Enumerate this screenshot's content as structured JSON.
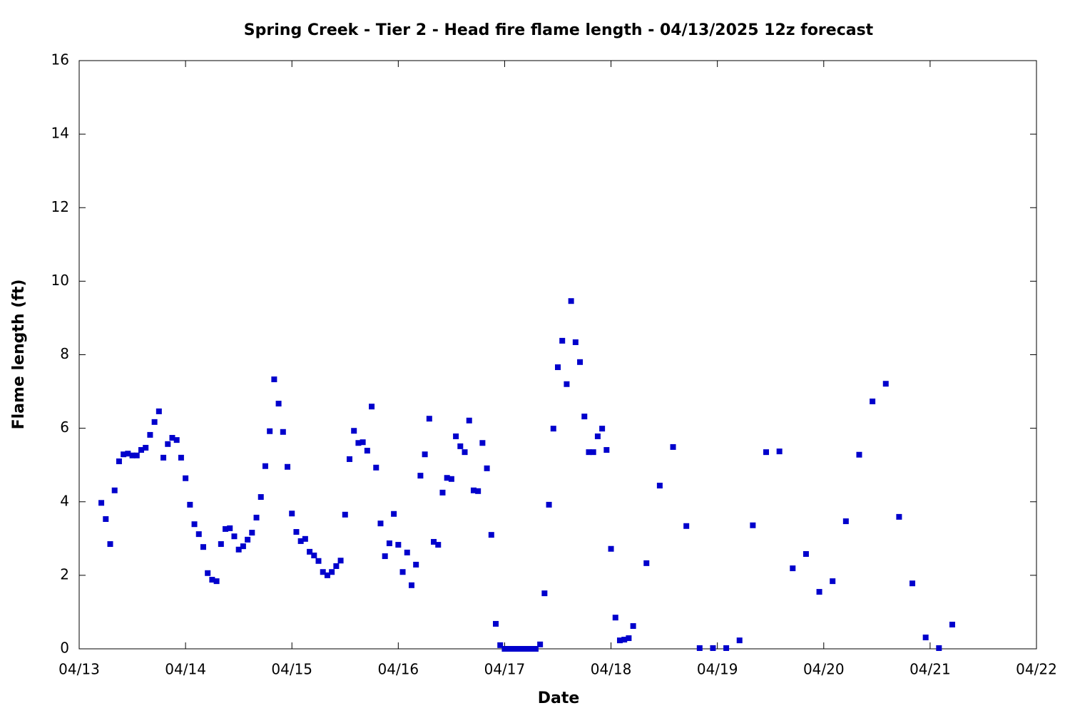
{
  "chart_data": {
    "type": "scatter",
    "title": "Spring Creek - Tier 2 - Head fire flame length - 04/13/2025 12z forecast",
    "x_label": "Date",
    "y_label": "Flame length (ft)",
    "x": [
      5,
      6,
      7,
      8,
      9,
      10,
      11,
      12,
      13,
      14,
      15,
      16,
      17,
      18,
      19,
      20,
      21,
      22,
      23,
      24,
      25,
      26,
      27,
      28,
      29,
      30,
      31,
      32,
      33,
      34,
      35,
      36,
      37,
      38,
      39,
      40,
      41,
      42,
      43,
      44,
      45,
      46,
      47,
      48,
      49,
      50,
      51,
      52,
      53,
      54,
      55,
      56,
      57,
      58,
      59,
      60,
      61,
      62,
      63,
      64,
      65,
      66,
      67,
      68,
      69,
      70,
      71,
      72,
      73,
      74,
      75,
      76,
      77,
      78,
      79,
      80,
      81,
      82,
      83,
      84,
      85,
      86,
      87,
      88,
      89,
      90,
      91,
      92,
      93,
      94,
      95,
      96,
      97,
      98,
      99,
      100,
      101,
      102,
      103,
      104,
      105,
      106,
      107,
      108,
      109,
      110,
      111,
      112,
      113,
      114,
      115,
      116,
      117,
      118,
      119,
      120,
      121,
      122,
      123,
      124,
      125,
      128,
      131,
      134,
      137,
      140,
      143,
      146,
      149,
      152,
      155,
      158,
      161,
      164,
      167,
      170,
      173,
      176,
      179,
      182,
      185,
      188,
      191,
      194,
      197
    ],
    "series": [
      {
        "name": "Flame length",
        "color": "#0000cc",
        "values": [
          3.97,
          3.53,
          2.85,
          4.31,
          5.1,
          5.29,
          5.31,
          5.26,
          5.26,
          5.41,
          5.47,
          5.82,
          6.17,
          6.46,
          5.2,
          5.57,
          5.74,
          5.68,
          5.2,
          4.64,
          3.92,
          3.39,
          3.12,
          2.77,
          2.06,
          1.88,
          1.84,
          2.85,
          3.26,
          3.28,
          3.06,
          2.7,
          2.79,
          2.97,
          3.16,
          3.57,
          4.13,
          4.97,
          5.92,
          7.33,
          6.67,
          5.9,
          4.95,
          3.68,
          3.18,
          2.93,
          2.99,
          2.64,
          2.54,
          2.39,
          2.09,
          2.0,
          2.09,
          2.25,
          2.4,
          3.65,
          5.16,
          5.93,
          5.6,
          5.62,
          5.39,
          6.59,
          4.93,
          3.41,
          2.52,
          2.87,
          3.67,
          2.83,
          2.09,
          2.62,
          1.73,
          2.29,
          4.71,
          5.29,
          6.26,
          2.91,
          2.83,
          4.25,
          4.65,
          4.62,
          5.78,
          5.51,
          5.35,
          6.21,
          4.31,
          4.29,
          5.6,
          4.91,
          3.1,
          0.68,
          0.1,
          0,
          0,
          0,
          0,
          0,
          0,
          0,
          0,
          0.12,
          1.51,
          3.92,
          5.99,
          7.66,
          8.38,
          7.2,
          9.46,
          8.34,
          7.8,
          6.32,
          5.35,
          5.35,
          5.78,
          5.99,
          5.41,
          2.72,
          0.85,
          0.23,
          0.25,
          0.29,
          0.62,
          2.33,
          4.44,
          5.49,
          3.34,
          0.02,
          0.02,
          0.02,
          0.23,
          3.36,
          5.35,
          5.37,
          2.19,
          2.58,
          1.55,
          1.84,
          3.47,
          5.28,
          6.73,
          7.21,
          3.59,
          1.78,
          0.31,
          0.02,
          0.66
        ]
      }
    ],
    "xlim": [
      0,
      216
    ],
    "xticks": [
      {
        "value": 0,
        "label": "04/13"
      },
      {
        "value": 24,
        "label": "04/14"
      },
      {
        "value": 48,
        "label": "04/15"
      },
      {
        "value": 72,
        "label": "04/16"
      },
      {
        "value": 96,
        "label": "04/17"
      },
      {
        "value": 120,
        "label": "04/18"
      },
      {
        "value": 144,
        "label": "04/19"
      },
      {
        "value": 168,
        "label": "04/20"
      },
      {
        "value": 192,
        "label": "04/21"
      },
      {
        "value": 216,
        "label": "04/22"
      }
    ],
    "ylim": [
      0,
      16
    ],
    "yticks": [
      0,
      2,
      4,
      6,
      8,
      10,
      12,
      14,
      16
    ],
    "grid": false
  }
}
